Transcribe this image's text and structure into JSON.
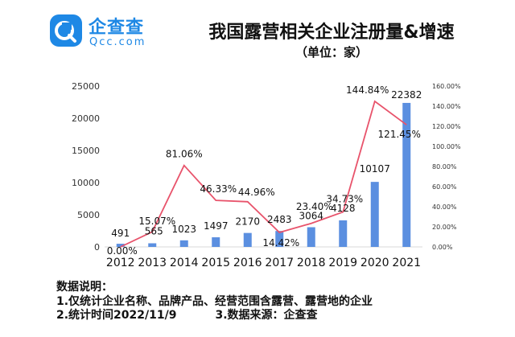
{
  "logo": {
    "name_cn": "企查查",
    "name_en": "Qcc.com"
  },
  "title": "我国露营相关企业注册量&增速",
  "unit": "（单位：家）",
  "chart_data": {
    "type": "bar",
    "title": "我国露营相关企业注册量&增速",
    "subtitle": "（单位：家）",
    "categories": [
      "2012",
      "2013",
      "2014",
      "2015",
      "2016",
      "2017",
      "2018",
      "2019",
      "2020",
      "2021"
    ],
    "series": [
      {
        "type": "bar",
        "axis": "left",
        "values": [
          491,
          565,
          1023,
          1497,
          2170,
          2483,
          3064,
          4128,
          10107,
          22382
        ],
        "labels": [
          "491",
          "565",
          "1023",
          "1497",
          "2170",
          "2483",
          "3064",
          "4128",
          "10107",
          "22382"
        ],
        "color": "#5b8fe0"
      },
      {
        "type": "line",
        "axis": "right",
        "values": [
          0.0,
          15.07,
          81.06,
          46.33,
          44.96,
          14.42,
          23.4,
          34.73,
          144.84,
          121.45
        ],
        "labels": [
          "0.00%",
          "15.07%",
          "81.06%",
          "46.33%",
          "44.96%",
          "14.42%",
          "23.40%",
          "34.73%",
          "144.84%",
          "121.45%"
        ],
        "color": "#e8536b"
      }
    ],
    "y_left": {
      "ylim": [
        0,
        25000
      ],
      "ticks": [
        "0",
        "5000",
        "10000",
        "15000",
        "20000",
        "25000"
      ]
    },
    "y_right": {
      "ylim": [
        0,
        160
      ],
      "ticks": [
        "0.00%",
        "20.00%",
        "40.00%",
        "60.00%",
        "80.00%",
        "100.00%",
        "120.00%",
        "140.00%",
        "160.00%"
      ]
    },
    "grid": false,
    "legend": "none"
  },
  "notes": {
    "heading": "数据说明：",
    "line1": "1.仅统计企业名称、品牌产品、经营范围含露营、露营地的企业",
    "line2a": "2.统计时间2022/11/9",
    "line2b": "3.数据来源：企查查"
  }
}
